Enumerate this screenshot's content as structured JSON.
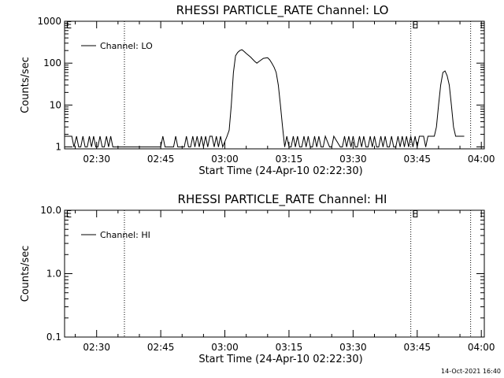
{
  "footer": {
    "timestamp": "14-Oct-2021 16:40"
  },
  "chart_data": [
    {
      "type": "line",
      "title": "RHESSI PARTICLE_RATE Channel: LO",
      "xlabel": "Start Time (24-Apr-10 02:22:30)",
      "ylabel": "Counts/sec",
      "yscale": "log",
      "ylim": [
        0.9,
        1000
      ],
      "xlim_minutes": [
        22.5,
        120.7
      ],
      "ytick_values": [
        1,
        10,
        100,
        1000
      ],
      "ytick_labels": [
        "1",
        "10",
        "100",
        "1000"
      ],
      "xtick_values": [
        30,
        45,
        60,
        75,
        90,
        105,
        120
      ],
      "xtick_labels": [
        "02:30",
        "02:45",
        "03:00",
        "03:15",
        "03:30",
        "03:45",
        "04:00"
      ],
      "vlines_minutes": [
        36.5,
        103.5,
        117.5
      ],
      "markers": [
        {
          "x": 22.8,
          "text": "E"
        },
        {
          "x": 103.8,
          "text": "E"
        }
      ],
      "legend": {
        "position": "top-left",
        "entries": [
          "Channel: LO"
        ]
      },
      "series": [
        {
          "name": "Channel: LO",
          "x": [
            22.5,
            23.0,
            23.5,
            24.2,
            24.7,
            25.3,
            25.8,
            26.3,
            26.8,
            27.3,
            27.8,
            28.3,
            28.8,
            29.3,
            29.8,
            30.3,
            30.8,
            31.3,
            31.8,
            32.3,
            32.8,
            33.3,
            33.8,
            45.0,
            45.5,
            46.0,
            48.0,
            48.5,
            49.0,
            50.5,
            51.0,
            51.5,
            52.0,
            52.5,
            53.0,
            53.5,
            54.0,
            54.5,
            55.0,
            55.5,
            56.0,
            56.5,
            57.0,
            57.5,
            58.0,
            58.5,
            59.0,
            59.5,
            60.5,
            61.0,
            61.5,
            62.0,
            62.5,
            63.0,
            63.5,
            64.0,
            64.5,
            65.0,
            66.0,
            67.0,
            67.5,
            68.0,
            69.0,
            70.0,
            70.5,
            71.0,
            71.5,
            72.0,
            72.5,
            73.0,
            73.5,
            74.0,
            74.5,
            75.0,
            75.5,
            76.0,
            76.5,
            77.0,
            77.5,
            78.0,
            78.5,
            79.0,
            79.5,
            80.0,
            80.5,
            81.0,
            81.5,
            82.0,
            82.5,
            83.0,
            83.5,
            84.5,
            85.0,
            85.5,
            87.0,
            87.5,
            88.0,
            88.5,
            89.0,
            89.5,
            90.0,
            90.5,
            91.0,
            91.5,
            92.0,
            92.5,
            93.0,
            93.5,
            94.0,
            94.5,
            95.0,
            95.5,
            96.0,
            96.5,
            97.0,
            97.5,
            98.0,
            98.5,
            99.0,
            99.5,
            100.0,
            100.5,
            101.0,
            101.5,
            102.0,
            102.5,
            103.0,
            103.5,
            104.0,
            104.5,
            105.0,
            105.5,
            106.0,
            106.5,
            107.0,
            107.5,
            108.0,
            108.5,
            109.0,
            109.5,
            110.0,
            110.5,
            111.0,
            111.5,
            112.0,
            112.5,
            113.0,
            113.5,
            114.0,
            114.5,
            115.0,
            115.5,
            116.0
          ],
          "y": [
            1.8,
            1.8,
            1.8,
            1.8,
            1,
            1.8,
            1,
            1,
            1.8,
            1,
            1,
            1.8,
            1,
            1.8,
            1,
            1,
            1.8,
            1,
            1,
            1.8,
            1,
            1.8,
            1,
            1,
            1.8,
            1,
            1,
            1.8,
            1,
            1,
            1.8,
            1,
            1,
            1.8,
            1,
            1.8,
            1,
            1.8,
            1,
            1.8,
            1,
            1.8,
            1.8,
            1,
            1.8,
            1,
            1.8,
            1,
            1.8,
            2.5,
            10,
            60,
            150,
            180,
            200,
            210,
            190,
            170,
            140,
            110,
            100,
            110,
            130,
            135,
            120,
            100,
            80,
            60,
            30,
            10,
            3,
            1,
            1.8,
            1,
            1,
            1.8,
            1,
            1.8,
            1,
            1,
            1.8,
            1,
            1.8,
            1,
            1,
            1.8,
            1,
            1.8,
            1,
            1,
            1.8,
            1,
            1,
            1.8,
            1,
            1,
            1.8,
            1,
            1.8,
            1,
            1.8,
            1,
            1,
            1.8,
            1,
            1.8,
            1,
            1,
            1.8,
            1,
            1.8,
            1,
            1,
            1.8,
            1,
            1.8,
            1,
            1,
            1.8,
            1,
            1,
            1.8,
            1,
            1.8,
            1,
            1.8,
            1,
            1.8,
            1,
            1.8,
            1,
            1.8,
            1.8,
            1.8,
            1,
            1.8,
            1.8,
            1.8,
            1.8,
            3,
            10,
            30,
            60,
            65,
            50,
            30,
            10,
            3,
            1.8,
            1.8,
            1.8,
            1.8,
            1.8
          ]
        }
      ]
    },
    {
      "type": "line",
      "title": "RHESSI PARTICLE_RATE Channel: HI",
      "xlabel": "Start Time (24-Apr-10 02:22:30)",
      "ylabel": "Counts/sec",
      "yscale": "log",
      "ylim": [
        0.1,
        10
      ],
      "xlim_minutes": [
        22.5,
        120.7
      ],
      "ytick_values": [
        0.1,
        1,
        10
      ],
      "ytick_labels": [
        "0.1",
        "1.0",
        "10.0"
      ],
      "xtick_values": [
        30,
        45,
        60,
        75,
        90,
        105,
        120
      ],
      "xtick_labels": [
        "02:30",
        "02:45",
        "03:00",
        "03:15",
        "03:30",
        "03:45",
        "04:00"
      ],
      "vlines_minutes": [
        36.5,
        103.5,
        117.5
      ],
      "markers": [
        {
          "x": 22.8,
          "text": "E"
        },
        {
          "x": 103.8,
          "text": "E"
        }
      ],
      "legend": {
        "position": "top-left",
        "entries": [
          "Channel: HI"
        ]
      },
      "series": [
        {
          "name": "Channel: HI",
          "x": [],
          "y": []
        }
      ]
    }
  ]
}
